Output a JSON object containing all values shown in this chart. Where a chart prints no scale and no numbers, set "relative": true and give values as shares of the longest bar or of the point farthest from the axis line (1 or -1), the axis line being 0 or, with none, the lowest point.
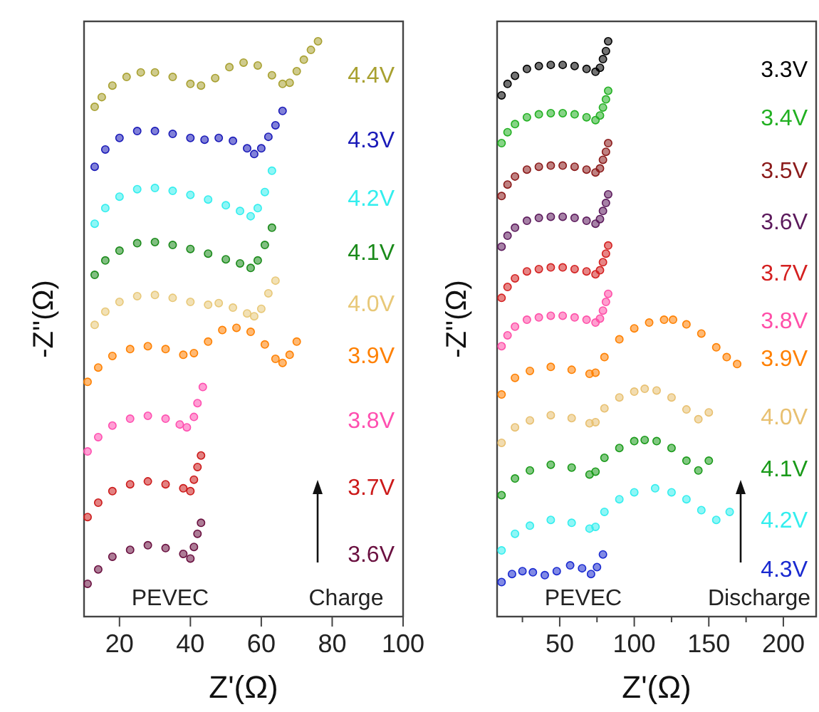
{
  "chart_data": [
    {
      "type": "scatter",
      "relative": true,
      "marker": "circle",
      "xlim": [
        10,
        100
      ],
      "xticks": [
        20,
        40,
        60,
        80,
        100
      ],
      "xlabel": "Z'(Ω)",
      "ylabel": "-Z''(Ω)",
      "annotations": [
        "PEVEC",
        "Charge"
      ],
      "series": [
        {
          "name": "4.4V",
          "color": "#a8a030",
          "x": [
            13,
            15,
            18,
            22,
            26,
            30,
            35,
            40,
            43,
            47,
            51,
            55,
            59,
            63,
            66,
            68,
            70,
            72,
            74,
            76
          ],
          "values": [
            0.886,
            0.903,
            0.923,
            0.938,
            0.946,
            0.946,
            0.938,
            0.926,
            0.923,
            0.936,
            0.955,
            0.963,
            0.958,
            0.941,
            0.926,
            0.928,
            0.948,
            0.968,
            0.985,
            1.0
          ]
        },
        {
          "name": "4.3V",
          "color": "#1a1ab8",
          "x": [
            13,
            16,
            20,
            25,
            30,
            35,
            40,
            44,
            48,
            52,
            56,
            58,
            60,
            62,
            64,
            66
          ],
          "values": [
            0.782,
            0.812,
            0.832,
            0.844,
            0.844,
            0.839,
            0.832,
            0.829,
            0.832,
            0.827,
            0.814,
            0.804,
            0.814,
            0.834,
            0.854,
            0.879
          ]
        },
        {
          "name": "4.2V",
          "color": "#33eeee",
          "x": [
            13,
            16,
            20,
            25,
            30,
            35,
            40,
            45,
            50,
            54,
            57,
            59,
            61,
            63
          ],
          "values": [
            0.683,
            0.71,
            0.73,
            0.743,
            0.745,
            0.74,
            0.733,
            0.725,
            0.715,
            0.705,
            0.696,
            0.71,
            0.738,
            0.775
          ]
        },
        {
          "name": "4.1V",
          "color": "#1a8a1a",
          "x": [
            13,
            16,
            20,
            25,
            30,
            35,
            40,
            45,
            50,
            54,
            57,
            59,
            61,
            63
          ],
          "values": [
            0.594,
            0.619,
            0.636,
            0.649,
            0.651,
            0.646,
            0.639,
            0.631,
            0.621,
            0.614,
            0.606,
            0.619,
            0.646,
            0.676
          ]
        },
        {
          "name": "4.0V",
          "color": "#e8c878",
          "x": [
            13,
            16,
            20,
            25,
            30,
            35,
            40,
            45,
            48,
            52,
            56,
            58,
            60,
            62,
            64
          ],
          "values": [
            0.507,
            0.53,
            0.547,
            0.557,
            0.559,
            0.554,
            0.547,
            0.542,
            0.545,
            0.537,
            0.527,
            0.522,
            0.535,
            0.562,
            0.584
          ]
        },
        {
          "name": "3.9V",
          "color": "#ff8000",
          "x": [
            11,
            14,
            18,
            23,
            28,
            33,
            38,
            41,
            45,
            49,
            53,
            57,
            61,
            64,
            66,
            68,
            70
          ],
          "values": [
            0.408,
            0.433,
            0.453,
            0.465,
            0.47,
            0.465,
            0.455,
            0.458,
            0.478,
            0.498,
            0.502,
            0.495,
            0.473,
            0.448,
            0.441,
            0.455,
            0.478
          ]
        },
        {
          "name": "3.8V",
          "color": "#ff4fb0",
          "x": [
            11,
            14,
            18,
            23,
            28,
            33,
            37,
            39,
            41,
            42,
            43.5
          ],
          "values": [
            0.287,
            0.312,
            0.332,
            0.344,
            0.349,
            0.344,
            0.334,
            0.329,
            0.347,
            0.371,
            0.399
          ]
        },
        {
          "name": "3.7V",
          "color": "#cc1a1a",
          "x": [
            11,
            14,
            18,
            23,
            28,
            33,
            38,
            40,
            41,
            42,
            43
          ],
          "values": [
            0.173,
            0.198,
            0.218,
            0.23,
            0.235,
            0.23,
            0.223,
            0.218,
            0.238,
            0.26,
            0.28
          ]
        },
        {
          "name": "3.6V",
          "color": "#6a1040",
          "x": [
            11,
            14,
            18,
            23,
            28,
            33,
            38,
            40,
            41,
            42,
            43
          ],
          "values": [
            0.057,
            0.082,
            0.104,
            0.116,
            0.124,
            0.119,
            0.109,
            0.101,
            0.121,
            0.144,
            0.163
          ]
        }
      ]
    },
    {
      "type": "scatter",
      "relative": true,
      "marker": "circle",
      "xlim": [
        8,
        222
      ],
      "xticks": [
        {
          "value": 25,
          "label": null
        },
        50,
        {
          "value": 75,
          "label": null
        },
        100,
        {
          "value": 125,
          "label": null
        },
        150,
        {
          "value": 175,
          "label": null
        },
        200
      ],
      "xlabel": "Z'(Ω)",
      "ylabel": "-Z''(Ω)",
      "annotations": [
        "PEVEC",
        "Discharge"
      ],
      "series": [
        {
          "name": "3.3V",
          "color": "#000000",
          "x": [
            11,
            15,
            20,
            28,
            36,
            44,
            52,
            60,
            68,
            74,
            77,
            79,
            81,
            82.5
          ],
          "values": [
            0.906,
            0.926,
            0.94,
            0.952,
            0.957,
            0.959,
            0.959,
            0.957,
            0.952,
            0.947,
            0.954,
            0.969,
            0.983,
            1.0
          ]
        },
        {
          "name": "3.4V",
          "color": "#22b022",
          "x": [
            11,
            15,
            20,
            28,
            36,
            44,
            52,
            60,
            68,
            74,
            77,
            79,
            81,
            82.5
          ],
          "values": [
            0.823,
            0.842,
            0.856,
            0.868,
            0.873,
            0.875,
            0.875,
            0.873,
            0.868,
            0.863,
            0.871,
            0.885,
            0.899,
            0.914
          ]
        },
        {
          "name": "3.5V",
          "color": "#8b1a1a",
          "x": [
            11,
            15,
            20,
            28,
            36,
            44,
            52,
            60,
            68,
            74,
            77,
            79,
            81,
            82.5
          ],
          "values": [
            0.731,
            0.751,
            0.765,
            0.777,
            0.782,
            0.784,
            0.784,
            0.782,
            0.777,
            0.772,
            0.779,
            0.794,
            0.808,
            0.823
          ]
        },
        {
          "name": "3.6V",
          "color": "#5c1a5c",
          "x": [
            11,
            15,
            20,
            28,
            36,
            44,
            52,
            60,
            68,
            74,
            77,
            79,
            81,
            82.5
          ],
          "values": [
            0.643,
            0.662,
            0.676,
            0.688,
            0.693,
            0.695,
            0.695,
            0.693,
            0.688,
            0.683,
            0.691,
            0.705,
            0.719,
            0.734
          ]
        },
        {
          "name": "3.7V",
          "color": "#d42020",
          "x": [
            11,
            15,
            20,
            28,
            36,
            44,
            52,
            60,
            68,
            74,
            77,
            79,
            81,
            82.5
          ],
          "values": [
            0.554,
            0.573,
            0.588,
            0.6,
            0.604,
            0.607,
            0.607,
            0.604,
            0.6,
            0.595,
            0.602,
            0.616,
            0.631,
            0.645
          ]
        },
        {
          "name": "3.8V",
          "color": "#ff4fa8",
          "x": [
            11,
            15,
            20,
            28,
            36,
            44,
            52,
            60,
            68,
            74,
            77,
            79,
            81,
            82.5
          ],
          "values": [
            0.47,
            0.489,
            0.504,
            0.516,
            0.52,
            0.523,
            0.523,
            0.52,
            0.516,
            0.511,
            0.518,
            0.532,
            0.547,
            0.561
          ]
        },
        {
          "name": "3.9V",
          "color": "#ff8000",
          "x": [
            11,
            20,
            30,
            44,
            58,
            70,
            74,
            80,
            90,
            100,
            110,
            120,
            126,
            135,
            145,
            155,
            162,
            169
          ],
          "values": [
            0.386,
            0.415,
            0.427,
            0.434,
            0.429,
            0.422,
            0.424,
            0.451,
            0.482,
            0.501,
            0.511,
            0.516,
            0.516,
            0.508,
            0.492,
            0.468,
            0.451,
            0.439
          ]
        },
        {
          "name": "4.0V",
          "color": "#e8c070",
          "x": [
            11,
            20,
            30,
            44,
            58,
            70,
            74,
            80,
            90,
            100,
            107,
            115,
            125,
            135,
            143,
            150
          ],
          "values": [
            0.302,
            0.329,
            0.341,
            0.35,
            0.345,
            0.336,
            0.338,
            0.362,
            0.381,
            0.391,
            0.396,
            0.393,
            0.381,
            0.36,
            0.343,
            0.355
          ]
        },
        {
          "name": "4.1V",
          "color": "#1a9a1a",
          "x": [
            11,
            20,
            30,
            44,
            58,
            70,
            74,
            80,
            90,
            100,
            107,
            115,
            125,
            135,
            143,
            150
          ],
          "values": [
            0.211,
            0.24,
            0.254,
            0.264,
            0.259,
            0.247,
            0.252,
            0.276,
            0.293,
            0.305,
            0.307,
            0.305,
            0.293,
            0.271,
            0.254,
            0.271
          ]
        },
        {
          "name": "4.2V",
          "color": "#33eeee",
          "x": [
            11,
            20,
            30,
            44,
            58,
            70,
            74,
            80,
            90,
            100,
            114,
            125,
            135,
            145,
            155,
            164
          ],
          "values": [
            0.115,
            0.144,
            0.158,
            0.168,
            0.163,
            0.153,
            0.156,
            0.182,
            0.204,
            0.216,
            0.223,
            0.216,
            0.204,
            0.185,
            0.168,
            0.182
          ]
        },
        {
          "name": "4.3V",
          "color": "#1a2ad0",
          "x": [
            11,
            18,
            25,
            32,
            40,
            48,
            57,
            65,
            71,
            75,
            79
          ],
          "values": [
            0.06,
            0.074,
            0.079,
            0.077,
            0.072,
            0.079,
            0.089,
            0.084,
            0.074,
            0.086,
            0.108
          ]
        }
      ]
    }
  ]
}
